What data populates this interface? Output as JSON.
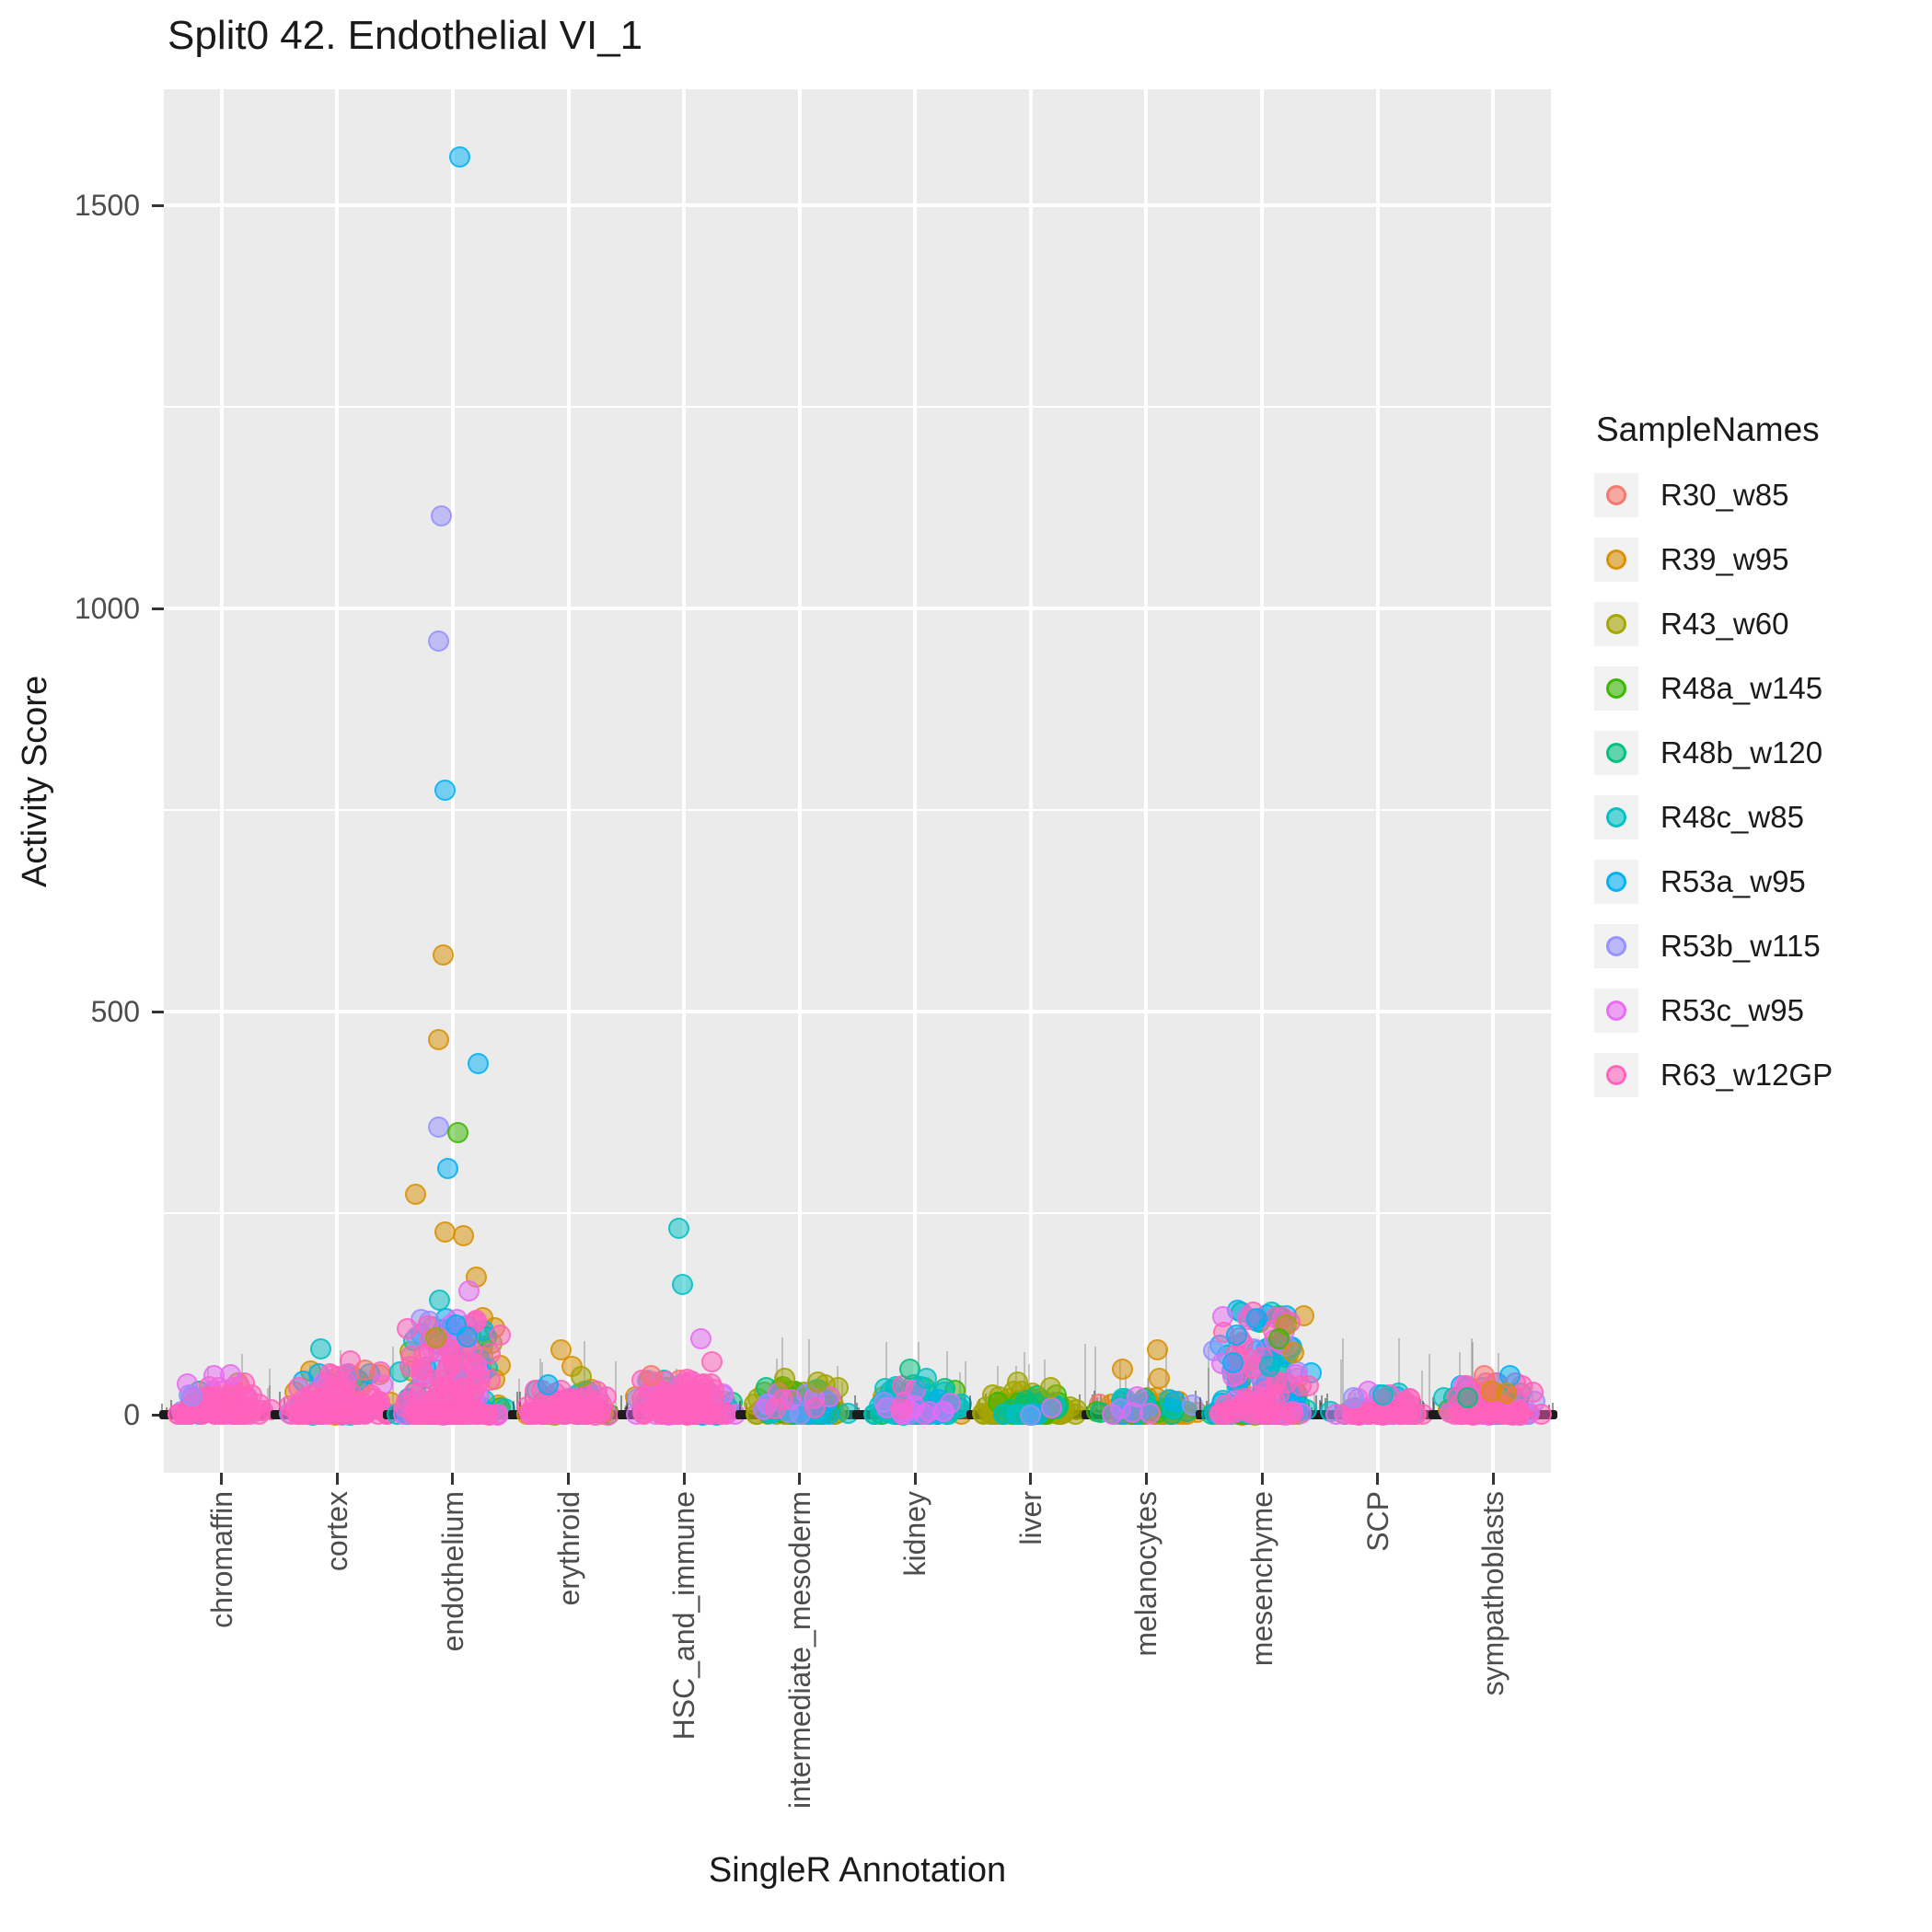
{
  "title": "Split0 42. Endothelial VI_1",
  "axes": {
    "x_title": "SingleR Annotation",
    "y_title": "Activity Score",
    "y_tick_labels": [
      "0",
      "500",
      "1000",
      "1500"
    ],
    "y_tick_values": [
      0,
      500,
      1000,
      1500
    ],
    "y_minor_values": [
      250,
      750,
      1250
    ],
    "categories": [
      "chromaffin",
      "cortex",
      "endothelium",
      "erythroid",
      "HSC_and_immune",
      "intermediate_mesoderm",
      "kidney",
      "liver",
      "melanocytes",
      "mesenchyme",
      "SCP",
      "sympathoblasts"
    ]
  },
  "legend": {
    "title": "SampleNames",
    "entries": [
      {
        "label": "R30_w85",
        "color": "#F8766D"
      },
      {
        "label": "R39_w95",
        "color": "#D89000"
      },
      {
        "label": "R43_w60",
        "color": "#A3A500"
      },
      {
        "label": "R48a_w145",
        "color": "#39B600"
      },
      {
        "label": "R48b_w120",
        "color": "#00BF7D"
      },
      {
        "label": "R48c_w85",
        "color": "#00BFC4"
      },
      {
        "label": "R53a_w95",
        "color": "#00B0F6"
      },
      {
        "label": "R53b_w115",
        "color": "#9590FF"
      },
      {
        "label": "R53c_w95",
        "color": "#E76BF3"
      },
      {
        "label": "R63_w12GP",
        "color": "#FF62BC"
      }
    ]
  },
  "style": {
    "panel_bg": "#EBEBEB",
    "grid_color": "#FFFFFF",
    "tick_label_color": "#4D4D4D",
    "text_color": "#1A1A1A",
    "legend_key_bg": "#F2F2F2",
    "baseline_color": "#1C1C1C"
  },
  "chart_data": {
    "type": "scatter",
    "title": "Split0 42. Endothelial VI_1",
    "xlabel": "SingleR Annotation",
    "ylabel": "Activity Score",
    "ylim": [
      -60,
      1620
    ],
    "y_ticks": [
      0,
      500,
      1000,
      1500
    ],
    "grid": true,
    "legend_position": "right",
    "categories": [
      "chromaffin",
      "cortex",
      "endothelium",
      "erythroid",
      "HSC_and_immune",
      "intermediate_mesoderm",
      "kidney",
      "liver",
      "melanocytes",
      "mesenchyme",
      "SCP",
      "sympathoblasts"
    ],
    "samples": [
      "R30_w85",
      "R39_w95",
      "R43_w60",
      "R48a_w145",
      "R48b_w120",
      "R48c_w85",
      "R53a_w95",
      "R53b_w115",
      "R53c_w95",
      "R63_w12GP"
    ],
    "sample_colors": [
      "#F8766D",
      "#D89000",
      "#A3A500",
      "#39B600",
      "#00BF7D",
      "#00BFC4",
      "#00B0F6",
      "#9590FF",
      "#E76BF3",
      "#FF62BC"
    ],
    "description": "Jittered activity scores per SingleR annotation; dense clusters of cells sit near 0 in every category (black baseline mass), with colored sample points overlaid.",
    "clusters": [
      {
        "category": "chromaffin",
        "n": 110,
        "max_typical": 40,
        "half_width": 52,
        "sample_weights": [
          3,
          2,
          4,
          1,
          2,
          2,
          2,
          6,
          8,
          70
        ]
      },
      {
        "category": "cortex",
        "n": 170,
        "max_typical": 55,
        "half_width": 56,
        "sample_weights": [
          8,
          5,
          4,
          2,
          3,
          6,
          8,
          8,
          10,
          46
        ]
      },
      {
        "category": "endothelium",
        "n": 260,
        "max_typical": 120,
        "half_width": 60,
        "sample_weights": [
          2,
          6,
          10,
          4,
          4,
          8,
          12,
          8,
          10,
          36
        ]
      },
      {
        "category": "erythroid",
        "n": 110,
        "max_typical": 32,
        "half_width": 50,
        "sample_weights": [
          3,
          8,
          8,
          2,
          3,
          5,
          5,
          4,
          6,
          56
        ]
      },
      {
        "category": "HSC_and_immune",
        "n": 170,
        "max_typical": 45,
        "half_width": 56,
        "sample_weights": [
          4,
          6,
          6,
          3,
          3,
          6,
          8,
          10,
          14,
          40
        ]
      },
      {
        "category": "intermediate_mesoderm",
        "n": 130,
        "max_typical": 38,
        "half_width": 54,
        "sample_weights": [
          2,
          4,
          58,
          6,
          8,
          10,
          2,
          4,
          4,
          2
        ]
      },
      {
        "category": "kidney",
        "n": 110,
        "max_typical": 38,
        "half_width": 52,
        "sample_weights": [
          2,
          3,
          8,
          6,
          14,
          48,
          4,
          3,
          10,
          2
        ]
      },
      {
        "category": "liver",
        "n": 130,
        "max_typical": 30,
        "half_width": 54,
        "sample_weights": [
          2,
          3,
          70,
          8,
          10,
          4,
          1,
          1,
          1,
          0
        ]
      },
      {
        "category": "melanocytes",
        "n": 100,
        "max_typical": 22,
        "half_width": 54,
        "sample_weights": [
          2,
          62,
          6,
          6,
          8,
          8,
          2,
          2,
          4,
          0
        ]
      },
      {
        "category": "mesenchyme",
        "n": 210,
        "max_typical": 130,
        "half_width": 56,
        "sample_weights": [
          3,
          6,
          10,
          8,
          6,
          12,
          18,
          6,
          8,
          23
        ]
      },
      {
        "category": "SCP",
        "n": 90,
        "max_typical": 28,
        "half_width": 50,
        "sample_weights": [
          2,
          2,
          3,
          2,
          6,
          6,
          8,
          12,
          12,
          47
        ]
      },
      {
        "category": "sympathoblasts",
        "n": 140,
        "max_typical": 40,
        "half_width": 54,
        "sample_weights": [
          6,
          5,
          4,
          3,
          6,
          6,
          8,
          6,
          8,
          48
        ]
      }
    ],
    "notable_points": [
      {
        "category": "endothelium",
        "sample": "R53a_w95",
        "value": 1560,
        "dx": 8
      },
      {
        "category": "endothelium",
        "sample": "R53b_w115",
        "value": 1115,
        "dx": -12
      },
      {
        "category": "endothelium",
        "sample": "R53b_w115",
        "value": 960,
        "dx": -15
      },
      {
        "category": "endothelium",
        "sample": "R53a_w95",
        "value": 775,
        "dx": -8
      },
      {
        "category": "endothelium",
        "sample": "R39_w95",
        "value": 570,
        "dx": -10
      },
      {
        "category": "endothelium",
        "sample": "R39_w95",
        "value": 465,
        "dx": -15
      },
      {
        "category": "endothelium",
        "sample": "R53a_w95",
        "value": 435,
        "dx": 28
      },
      {
        "category": "endothelium",
        "sample": "R53b_w115",
        "value": 357,
        "dx": -15
      },
      {
        "category": "endothelium",
        "sample": "R48a_w145",
        "value": 350,
        "dx": 6
      },
      {
        "category": "endothelium",
        "sample": "R53a_w95",
        "value": 305,
        "dx": -5
      },
      {
        "category": "endothelium",
        "sample": "R39_w95",
        "value": 273,
        "dx": -40
      },
      {
        "category": "endothelium",
        "sample": "R39_w95",
        "value": 227,
        "dx": -8
      },
      {
        "category": "endothelium",
        "sample": "R39_w95",
        "value": 222,
        "dx": 12
      },
      {
        "category": "endothelium",
        "sample": "R39_w95",
        "value": 171,
        "dx": 26
      },
      {
        "category": "endothelium",
        "sample": "R53c_w95",
        "value": 154,
        "dx": 18
      },
      {
        "category": "endothelium",
        "sample": "R48c_w85",
        "value": 142,
        "dx": -14
      },
      {
        "category": "endothelium",
        "sample": "R53a_w95",
        "value": 111,
        "dx": 4
      },
      {
        "category": "endothelium",
        "sample": "R53a_w95",
        "value": 96,
        "dx": 16
      },
      {
        "category": "endothelium",
        "sample": "R43_w60",
        "value": 95,
        "dx": -18
      },
      {
        "category": "HSC_and_immune",
        "sample": "R48c_w85",
        "value": 231,
        "dx": -6
      },
      {
        "category": "HSC_and_immune",
        "sample": "R48c_w85",
        "value": 161,
        "dx": -2
      },
      {
        "category": "HSC_and_immune",
        "sample": "R53c_w95",
        "value": 94,
        "dx": 18
      },
      {
        "category": "HSC_and_immune",
        "sample": "R63_w12GP",
        "value": 66,
        "dx": 30
      },
      {
        "category": "HSC_and_immune",
        "sample": "R30_w85",
        "value": 48,
        "dx": -36
      },
      {
        "category": "cortex",
        "sample": "R48c_w85",
        "value": 82,
        "dx": -18
      },
      {
        "category": "cortex",
        "sample": "R63_w12GP",
        "value": 67,
        "dx": 14
      },
      {
        "category": "cortex",
        "sample": "R30_w85",
        "value": 55,
        "dx": 30
      },
      {
        "category": "chromaffin",
        "sample": "R53c_w95",
        "value": 50,
        "dx": 10
      },
      {
        "category": "chromaffin",
        "sample": "R53c_w95",
        "value": 48,
        "dx": -8
      },
      {
        "category": "chromaffin",
        "sample": "R53b_w115",
        "value": 23,
        "dx": -32
      },
      {
        "category": "erythroid",
        "sample": "R39_w95",
        "value": 80,
        "dx": -8
      },
      {
        "category": "erythroid",
        "sample": "R39_w95",
        "value": 60,
        "dx": 4
      },
      {
        "category": "erythroid",
        "sample": "R43_w60",
        "value": 47,
        "dx": 14
      },
      {
        "category": "erythroid",
        "sample": "R53a_w95",
        "value": 37,
        "dx": -22
      },
      {
        "category": "intermediate_mesoderm",
        "sample": "R43_w60",
        "value": 45,
        "dx": -16
      },
      {
        "category": "intermediate_mesoderm",
        "sample": "R43_w60",
        "value": 40,
        "dx": 20
      },
      {
        "category": "kidney",
        "sample": "R48b_w120",
        "value": 57,
        "dx": -6
      },
      {
        "category": "kidney",
        "sample": "R48c_w85",
        "value": 45,
        "dx": 12
      },
      {
        "category": "liver",
        "sample": "R43_w60",
        "value": 40,
        "dx": -14
      },
      {
        "category": "liver",
        "sample": "R43_w60",
        "value": 34,
        "dx": 22
      },
      {
        "category": "melanocytes",
        "sample": "R39_w95",
        "value": 80,
        "dx": 12
      },
      {
        "category": "melanocytes",
        "sample": "R39_w95",
        "value": 56,
        "dx": -26
      },
      {
        "category": "melanocytes",
        "sample": "R39_w95",
        "value": 45,
        "dx": 14
      },
      {
        "category": "mesenchyme",
        "sample": "R53a_w95",
        "value": 119,
        "dx": -6
      },
      {
        "category": "mesenchyme",
        "sample": "R43_w60",
        "value": 111,
        "dx": 26
      },
      {
        "category": "mesenchyme",
        "sample": "R53a_w95",
        "value": 99,
        "dx": -28
      },
      {
        "category": "mesenchyme",
        "sample": "R48a_w145",
        "value": 94,
        "dx": 18
      },
      {
        "category": "mesenchyme",
        "sample": "R39_w95",
        "value": 77,
        "dx": 34
      },
      {
        "category": "mesenchyme",
        "sample": "R53a_w95",
        "value": 65,
        "dx": -32
      },
      {
        "category": "mesenchyme",
        "sample": "R48c_w85",
        "value": 60,
        "dx": 8
      },
      {
        "category": "SCP",
        "sample": "R53c_w95",
        "value": 29,
        "dx": -10
      },
      {
        "category": "SCP",
        "sample": "R48c_w85",
        "value": 25,
        "dx": 6
      },
      {
        "category": "SCP",
        "sample": "R53b_w115",
        "value": 21,
        "dx": -26
      },
      {
        "category": "sympathoblasts",
        "sample": "R30_w85",
        "value": 48,
        "dx": -10
      },
      {
        "category": "sympathoblasts",
        "sample": "R53a_w95",
        "value": 48,
        "dx": 18
      },
      {
        "category": "sympathoblasts",
        "sample": "R39_w95",
        "value": 29,
        "dx": -2
      },
      {
        "category": "sympathoblasts",
        "sample": "R39_w95",
        "value": 27,
        "dx": 14
      },
      {
        "category": "sympathoblasts",
        "sample": "R48b_w120",
        "value": 21,
        "dx": -28
      }
    ]
  }
}
